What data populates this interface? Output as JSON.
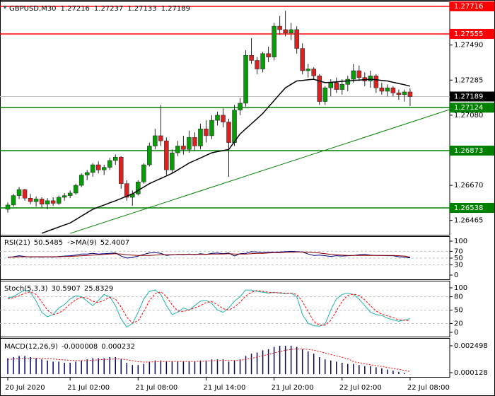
{
  "chart_data": [
    {
      "type": "candlestick",
      "title": "GBPUSD,M30",
      "open": [
        1.2653,
        1.26555,
        1.2661,
        1.26645,
        1.26595,
        1.26575,
        1.2659,
        1.2656,
        1.2658,
        1.26565,
        1.266,
        1.2661,
        1.26625,
        1.2667,
        1.2673,
        1.26745,
        1.2679,
        1.2676,
        1.26775,
        1.26815,
        1.26835,
        1.2668,
        1.266,
        1.2662,
        1.2669,
        1.2679,
        1.269,
        1.2696,
        1.2693,
        1.2676,
        1.2686,
        1.269,
        1.2688,
        1.2695,
        1.269,
        1.27,
        1.2696,
        1.2705,
        1.2708,
        1.2704,
        1.2692,
        1.2711,
        1.2715,
        1.2743,
        1.274,
        1.2735,
        1.2744,
        1.2742,
        1.276,
        1.2758,
        1.2756,
        1.2758,
        1.2747,
        1.2734,
        1.2735,
        1.2731,
        1.2716,
        1.2724,
        1.2727,
        1.2723,
        1.2726,
        1.2729,
        1.2734,
        1.273,
        1.2728,
        1.2731,
        1.2724,
        1.2722,
        1.2724,
        1.2721,
        1.272,
        1.27216
      ],
      "high": [
        1.2657,
        1.2662,
        1.2666,
        1.2665,
        1.2662,
        1.26605,
        1.266,
        1.26595,
        1.266,
        1.2661,
        1.26625,
        1.2664,
        1.2668,
        1.2674,
        1.2676,
        1.268,
        1.2681,
        1.2679,
        1.2683,
        1.2685,
        1.2684,
        1.267,
        1.2664,
        1.267,
        1.268,
        1.2692,
        1.27,
        1.2714,
        1.2695,
        1.2688,
        1.2693,
        1.2696,
        1.2699,
        1.2698,
        1.2703,
        1.2705,
        1.2708,
        1.271,
        1.2712,
        1.2706,
        1.2714,
        1.2718,
        1.2746,
        1.2753,
        1.2742,
        1.2745,
        1.2748,
        1.2762,
        1.2766,
        1.2769,
        1.2762,
        1.276,
        1.275,
        1.2738,
        1.2736,
        1.2732,
        1.2725,
        1.2729,
        1.273,
        1.2729,
        1.2731,
        1.2738,
        1.2737,
        1.2733,
        1.2734,
        1.2732,
        1.2727,
        1.2726,
        1.2725,
        1.2723,
        1.2723,
        1.27237
      ],
      "low": [
        1.2651,
        1.26545,
        1.2659,
        1.2658,
        1.2656,
        1.26545,
        1.2654,
        1.2653,
        1.2655,
        1.26555,
        1.2658,
        1.26595,
        1.26615,
        1.2666,
        1.267,
        1.2672,
        1.2674,
        1.2673,
        1.2676,
        1.2679,
        1.2665,
        1.2658,
        1.2655,
        1.2661,
        1.2668,
        1.2678,
        1.2688,
        1.269,
        1.2673,
        1.2674,
        1.2684,
        1.2685,
        1.2686,
        1.2687,
        1.2688,
        1.2692,
        1.2694,
        1.2702,
        1.2701,
        1.2672,
        1.269,
        1.2708,
        1.2713,
        1.2738,
        1.2732,
        1.2733,
        1.2739,
        1.274,
        1.2755,
        1.2754,
        1.2752,
        1.2744,
        1.2732,
        1.273,
        1.2729,
        1.2714,
        1.2714,
        1.2719,
        1.2721,
        1.272,
        1.2722,
        1.2727,
        1.2728,
        1.2725,
        1.2724,
        1.2721,
        1.272,
        1.2719,
        1.2719,
        1.2717,
        1.2716,
        1.27133
      ],
      "close": [
        1.26555,
        1.2661,
        1.26645,
        1.26595,
        1.26575,
        1.2659,
        1.2656,
        1.2658,
        1.26565,
        1.266,
        1.2661,
        1.26625,
        1.2667,
        1.2673,
        1.26745,
        1.2679,
        1.2676,
        1.26775,
        1.26815,
        1.26835,
        1.2668,
        1.266,
        1.2662,
        1.2669,
        1.2679,
        1.269,
        1.2696,
        1.2693,
        1.2676,
        1.2686,
        1.269,
        1.2688,
        1.2695,
        1.269,
        1.27,
        1.2696,
        1.2705,
        1.2708,
        1.2704,
        1.2692,
        1.2711,
        1.2715,
        1.2743,
        1.274,
        1.2735,
        1.2744,
        1.2742,
        1.276,
        1.2758,
        1.2756,
        1.2758,
        1.2747,
        1.2734,
        1.2735,
        1.2731,
        1.2716,
        1.2724,
        1.2727,
        1.2723,
        1.2726,
        1.2729,
        1.2734,
        1.273,
        1.2728,
        1.2731,
        1.2724,
        1.2722,
        1.2724,
        1.2721,
        1.272,
        1.27216,
        1.27189
      ],
      "up_color": "#00a000",
      "down_color": "#e02020",
      "wick_color": "#222222",
      "ma": {
        "color": "#000000",
        "values": [
          null,
          null,
          null,
          null,
          null,
          null,
          1.2639,
          1.26402,
          1.26414,
          1.26426,
          1.26438,
          1.2645,
          1.2647,
          1.2649,
          1.2651,
          1.2653,
          1.26543,
          1.26555,
          1.26568,
          1.2658,
          1.26593,
          1.26607,
          1.2662,
          1.2664,
          1.2666,
          1.2668,
          1.26695,
          1.2671,
          1.26725,
          1.2674,
          1.2676,
          1.2678,
          1.268,
          1.26815,
          1.2683,
          1.26845,
          1.2686,
          1.26867,
          1.26873,
          1.2688,
          1.26925,
          1.2697,
          1.27,
          1.2703,
          1.2706,
          1.2709,
          1.27128,
          1.27165,
          1.27203,
          1.2724,
          1.2726,
          1.2728,
          1.27283,
          1.27287,
          1.2729,
          1.2728,
          1.2727,
          1.27272,
          1.27275,
          1.27278,
          1.2728,
          1.27283,
          1.27285,
          1.27288,
          1.2729,
          1.27287,
          1.27283,
          1.2728,
          1.27272,
          1.27265,
          1.27258,
          1.2725
        ]
      },
      "levels": [
        {
          "value": 1.27716,
          "color": "#ff0000"
        },
        {
          "value": 1.27555,
          "color": "#ff0000"
        },
        {
          "value": 1.27124,
          "color": "#008000"
        },
        {
          "value": 1.26873,
          "color": "#008000"
        },
        {
          "value": 1.26538,
          "color": "#008000"
        }
      ],
      "trendline": {
        "x": [
          11,
          78
        ],
        "y": [
          1.26389,
          1.27113
        ],
        "color": "#008000"
      },
      "xlim": [
        -1.375,
        78
      ],
      "xticks": [
        {
          "value": 0,
          "label": "20 Jul 2020"
        },
        {
          "value": 11,
          "label": "21 Jul 02:00"
        },
        {
          "value": 23,
          "label": "21 Jul 08:00"
        },
        {
          "value": 35,
          "label": "21 Jul 14:00"
        },
        {
          "value": 47,
          "label": "21 Jul 20:00"
        },
        {
          "value": 59,
          "label": "22 Jul 02:00"
        },
        {
          "value": 71,
          "label": "22 Jul 08:00"
        }
      ],
      "ylim": [
        1.26381,
        1.27745
      ],
      "yticks": [
        {
          "value": 1.2749,
          "label": "1.27490"
        },
        1.27285,
        {
          "value": 1.2708,
          "label": "1.27080"
        },
        {
          "value": 1.2667,
          "label": "1.26670"
        },
        1.26465
      ]
    },
    {
      "type": "line",
      "grid": true,
      "series": [
        {
          "name": "RSI(21)",
          "color": "#000080",
          "values": [
            52,
            54,
            57,
            55,
            53,
            54,
            53,
            54,
            53,
            55,
            56,
            57,
            59,
            62,
            62,
            64,
            62,
            63,
            64,
            65,
            56,
            50,
            52,
            56,
            61,
            65,
            66,
            64,
            58,
            60,
            61,
            60,
            62,
            60,
            63,
            61,
            64,
            65,
            63,
            65,
            56,
            63,
            64,
            69,
            68,
            66,
            67,
            67,
            68,
            69,
            70,
            69,
            68,
            62,
            58,
            59,
            57,
            55,
            57,
            56,
            57,
            58,
            60,
            61,
            59,
            58,
            58,
            57,
            57,
            54,
            53,
            50.5485
          ]
        },
        {
          "name": "->MA(9)",
          "color": "#8b0000",
          "values": [
            53,
            53,
            54,
            54,
            54,
            54,
            54,
            54,
            54,
            54,
            55,
            55,
            56,
            57,
            58,
            59,
            60,
            61,
            62,
            63,
            62,
            60,
            59,
            58,
            58,
            58,
            59,
            60,
            60,
            60,
            61,
            61,
            61,
            61,
            61,
            61,
            62,
            62,
            62,
            63,
            62,
            62,
            62,
            63,
            64,
            64,
            65,
            66,
            66,
            67,
            67,
            68,
            68,
            67,
            66,
            65,
            63,
            61,
            60,
            59,
            58,
            58,
            58,
            58,
            58,
            58,
            58,
            58,
            58,
            57,
            56,
            52.4007
          ]
        }
      ],
      "ylim": [
        0,
        100
      ],
      "yticks": [
        100,
        70,
        50,
        30,
        0
      ]
    },
    {
      "type": "line",
      "title": "Stoch(5,3,3)",
      "grid": true,
      "series": [
        {
          "color": "#20b2aa",
          "values": [
            78,
            80,
            88,
            95,
            90,
            70,
            45,
            35,
            40,
            55,
            62,
            75,
            82,
            80,
            70,
            60,
            72,
            85,
            80,
            60,
            30,
            12,
            20,
            45,
            75,
            92,
            95,
            85,
            60,
            40,
            45,
            55,
            50,
            60,
            70,
            72,
            65,
            50,
            45,
            55,
            70,
            80,
            95,
            95,
            92,
            90,
            88,
            90,
            88,
            87,
            88,
            80,
            40,
            20,
            15,
            14,
            18,
            50,
            75,
            85,
            88,
            85,
            75,
            60,
            45,
            40,
            38,
            32,
            28,
            25,
            28,
            30.5907
          ]
        },
        {
          "color": "#ff0000",
          "dashed": true,
          "values": [
            75,
            78,
            82,
            88,
            91,
            85,
            68,
            50,
            40,
            43,
            52,
            64,
            73,
            79,
            77,
            70,
            67,
            72,
            79,
            75,
            57,
            34,
            21,
            26,
            47,
            71,
            87,
            91,
            80,
            62,
            48,
            47,
            50,
            55,
            60,
            67,
            69,
            62,
            53,
            50,
            57,
            68,
            82,
            90,
            94,
            92,
            90,
            89,
            89,
            88,
            88,
            85,
            69,
            47,
            25,
            16,
            16,
            27,
            48,
            70,
            83,
            86,
            83,
            73,
            60,
            48,
            41,
            37,
            33,
            28,
            27,
            25.8329
          ]
        }
      ],
      "ylim": [
        0,
        100
      ],
      "yticks": [
        100,
        80,
        50,
        20,
        0
      ]
    },
    {
      "type": "macd",
      "title": "MACD(12,26,9)",
      "series": [
        {
          "color": "#000080",
          "style": "histogram",
          "values": [
            0.0014,
            0.0015,
            0.0016,
            0.0016,
            0.0015,
            0.0014,
            0.0013,
            0.0012,
            0.0011,
            0.0011,
            0.001,
            0.001,
            0.0011,
            0.0012,
            0.0013,
            0.0014,
            0.0014,
            0.0014,
            0.0015,
            0.0015,
            0.0013,
            0.001,
            0.0008,
            0.0008,
            0.0009,
            0.0011,
            0.0012,
            0.0012,
            0.0011,
            0.0011,
            0.0011,
            0.0011,
            0.0011,
            0.0011,
            0.0012,
            0.0012,
            0.0013,
            0.0013,
            0.0013,
            0.0011,
            0.0012,
            0.0013,
            0.0016,
            0.0018,
            0.0019,
            0.0021,
            0.0022,
            0.0024,
            0.0025,
            0.0025,
            0.0025,
            0.0024,
            0.0022,
            0.002,
            0.0018,
            0.0015,
            0.0013,
            0.0012,
            0.0011,
            0.001,
            0.0009,
            0.0009,
            0.0008,
            0.0007,
            0.0007,
            0.0006,
            0.0005,
            0.0004,
            0.0003,
            0.0002,
            0.0001,
            -8e-06
          ]
        },
        {
          "color": "#ff0000",
          "style": "dotted",
          "values": [
            0.0013,
            0.00132,
            0.00135,
            0.00138,
            0.0014,
            0.0014,
            0.00139,
            0.00136,
            0.00133,
            0.00129,
            0.00125,
            0.00121,
            0.00119,
            0.00119,
            0.0012,
            0.00123,
            0.00126,
            0.00128,
            0.00131,
            0.00134,
            0.00133,
            0.00127,
            0.00118,
            0.0011,
            0.00106,
            0.00107,
            0.00109,
            0.00112,
            0.00112,
            0.00112,
            0.00112,
            0.00112,
            0.00112,
            0.00112,
            0.00113,
            0.00115,
            0.00118,
            0.0012,
            0.00122,
            0.0012,
            0.0012,
            0.00122,
            0.0013,
            0.0014,
            0.0015,
            0.00162,
            0.00174,
            0.00187,
            0.002,
            0.0021,
            0.00218,
            0.00222,
            0.00222,
            0.00218,
            0.00211,
            0.002,
            0.00186,
            0.00173,
            0.0016,
            0.00148,
            0.00136,
            0.0011,
            0.001,
            0.00091,
            0.00083,
            0.00075,
            0.00067,
            0.00059,
            0.0005,
            0.00042,
            0.00033,
            0.000232
          ]
        }
      ],
      "ylim": [
        -0.000246,
        0.00312
      ],
      "yticks": [
        0.002498,
        0.000128
      ]
    }
  ]
}
